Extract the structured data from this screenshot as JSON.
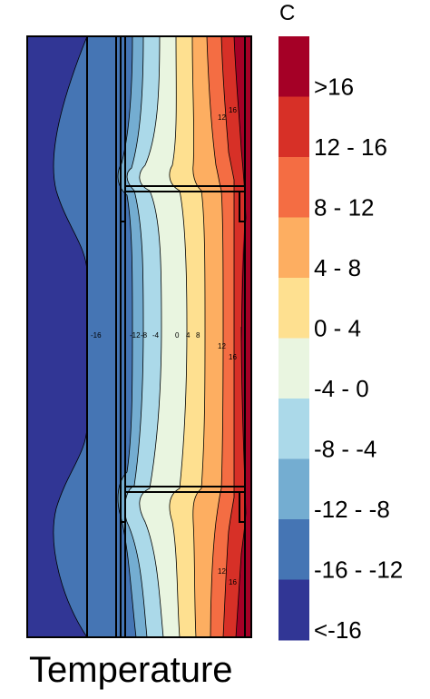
{
  "unit": "C",
  "caption": "Temperature",
  "legend": [
    {
      "label": ">16",
      "color": "#a50026"
    },
    {
      "label": "12 - 16",
      "color": "#d73027"
    },
    {
      "label": "8 - 12",
      "color": "#f46d43"
    },
    {
      "label": "4 - 8",
      "color": "#fdae61"
    },
    {
      "label": "0 - 4",
      "color": "#fee090"
    },
    {
      "label": "-4 - 0",
      "color": "#e9f5e0"
    },
    {
      "label": "-8 - -4",
      "color": "#abd9e9"
    },
    {
      "label": "-12 - -8",
      "color": "#74add1"
    },
    {
      "label": "-16 - -12",
      "color": "#4575b4"
    },
    {
      "label": "<-16",
      "color": "#313695"
    }
  ],
  "contour_labels": {
    "top": [
      "12",
      "16"
    ],
    "middle": [
      "-16",
      "-12",
      "-8",
      "-4",
      "0",
      "4",
      "8",
      "12",
      "16"
    ],
    "bottom": [
      "12",
      "16"
    ]
  }
}
